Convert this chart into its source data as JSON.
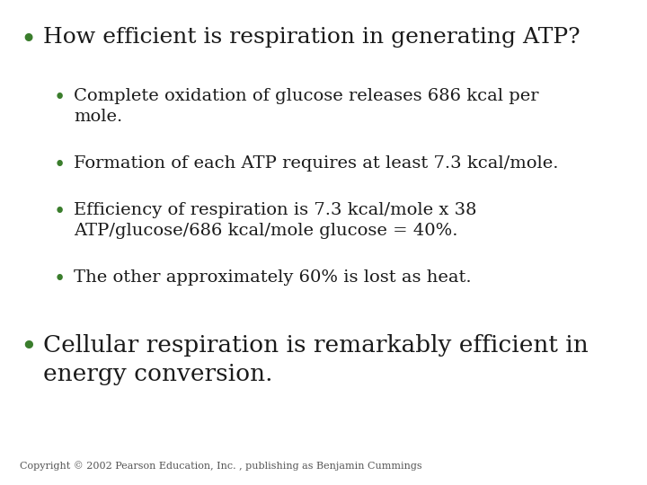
{
  "background_color": "#ffffff",
  "bullet_color": "#3a7d2c",
  "text_color": "#1a1a1a",
  "copyright_color": "#555555",
  "main_bullet": "How efficient is respiration in generating ATP?",
  "sub_bullets": [
    "Complete oxidation of glucose releases 686 kcal per\nmole.",
    "Formation of each ATP requires at least 7.3 kcal/mole.",
    "Efficiency of respiration is 7.3 kcal/mole x 38\nATP/glucose/686 kcal/mole glucose = 40%.",
    "The other approximately 60% is lost as heat."
  ],
  "conclusion_bullet": "Cellular respiration is remarkably efficient in\nenergy conversion.",
  "copyright": "Copyright © 2002 Pearson Education, Inc. , publishing as Benjamin Cummings",
  "main_font_size": 18,
  "sub_font_size": 14,
  "conclusion_font_size": 19,
  "copyright_font_size": 8
}
